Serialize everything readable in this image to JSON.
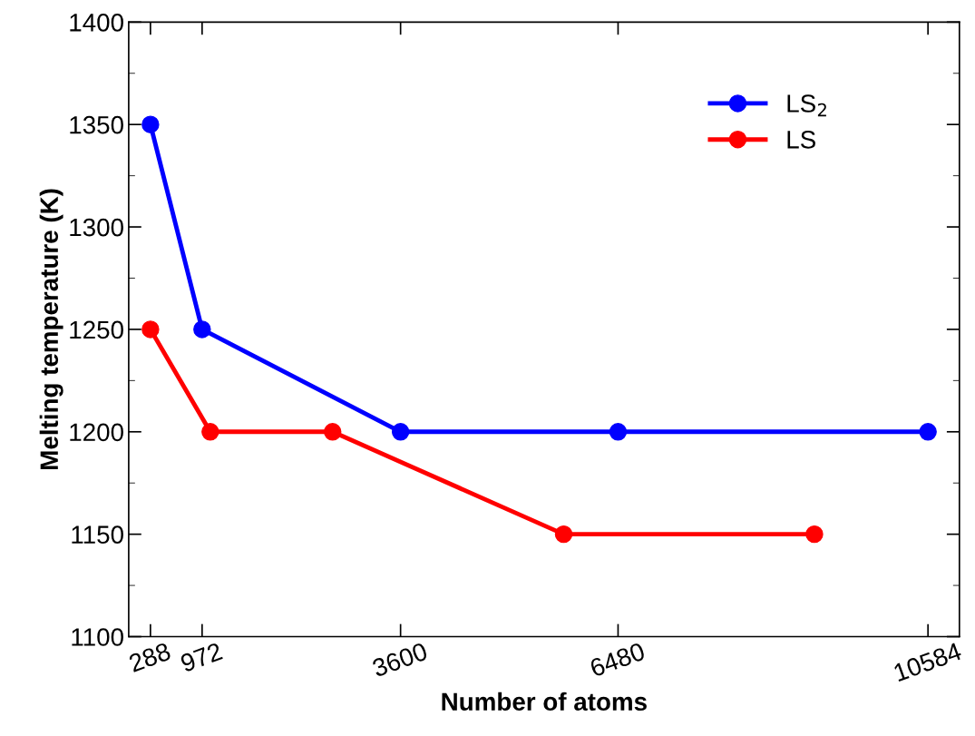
{
  "chart_data": {
    "type": "line",
    "xlabel": "Number of atoms",
    "ylabel": "Melting temperature (K)",
    "xlim": [
      0,
      11000
    ],
    "xticks": [
      288,
      972,
      3600,
      6480,
      10584
    ],
    "ylim": [
      1100,
      1400
    ],
    "yticks": [
      1100,
      1150,
      1200,
      1250,
      1300,
      1350,
      1400
    ],
    "marker": "circle",
    "line_style": "solid",
    "grid": false,
    "legend": "top right",
    "series": [
      {
        "name": "LS$_{2}$",
        "color": "#0000ff",
        "x": [
          288,
          972,
          3600,
          6480,
          10584
        ],
        "values": [
          1350,
          1250,
          1200,
          1200,
          1200
        ]
      },
      {
        "name": "LS",
        "color": "#ff0000",
        "x": [
          288,
          1080,
          2700,
          5760,
          9080
        ],
        "values": [
          1250,
          1200,
          1200,
          1150,
          1150
        ]
      }
    ]
  }
}
